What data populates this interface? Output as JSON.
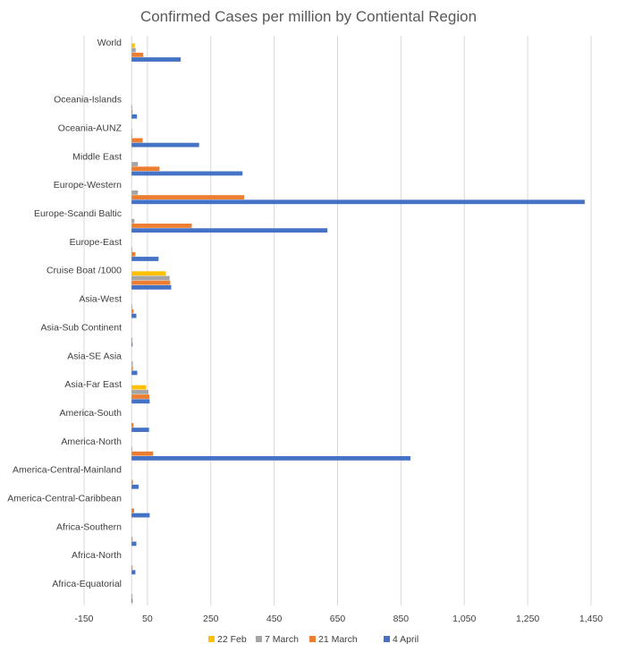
{
  "chart_data": {
    "type": "bar",
    "orientation": "horizontal",
    "title": "Confirmed Cases per million by Contiental Region",
    "xlabel": "",
    "ylabel": "",
    "xlim": [
      -150,
      1450
    ],
    "x_ticks": [
      -150,
      50,
      250,
      450,
      650,
      850,
      1050,
      1250,
      1450
    ],
    "x_tick_labels": [
      "-150",
      "50",
      "250",
      "450",
      "650",
      "850",
      "1,050",
      "1,250",
      "1,450"
    ],
    "grid": true,
    "legend_position": "bottom",
    "categories": [
      "World",
      "",
      "Oceania-Islands",
      "Oceania-AUNZ",
      "Middle East",
      "Europe-Western",
      "Europe-Scandi Baltic",
      "Europe-East",
      "Cruise Boat /1000",
      "Asia-West",
      "Asia-Sub Continent",
      "Asia-SE Asia",
      "Asia-Far East",
      "America-South",
      "America-North",
      "America-Central-Mainland",
      "America-Central-Caribbean",
      "Africa-Southern",
      "Africa-North",
      "Africa-Equatorial"
    ],
    "series": [
      {
        "name": "22 Feb",
        "color": "#ffc000",
        "values": [
          10,
          0,
          0,
          1,
          0,
          0,
          0,
          0,
          108,
          0,
          0,
          0,
          46,
          0,
          0,
          0,
          0,
          0,
          0,
          0
        ]
      },
      {
        "name": "7 March",
        "color": "#a5a5a5",
        "values": [
          13,
          0,
          2,
          2,
          20,
          20,
          9,
          2,
          120,
          2,
          0,
          4,
          53,
          0,
          2,
          0,
          0,
          0,
          0,
          0
        ]
      },
      {
        "name": "21 March",
        "color": "#ed7d31",
        "values": [
          37,
          0,
          3,
          35,
          88,
          355,
          190,
          12,
          122,
          6,
          1,
          4,
          56,
          6,
          68,
          4,
          8,
          3,
          3,
          1
        ]
      },
      {
        "name": "4 April",
        "color": "#4472c4",
        "values": [
          155,
          0,
          17,
          213,
          350,
          1430,
          618,
          85,
          125,
          15,
          3,
          18,
          57,
          55,
          880,
          22,
          57,
          15,
          12,
          3
        ]
      }
    ]
  }
}
